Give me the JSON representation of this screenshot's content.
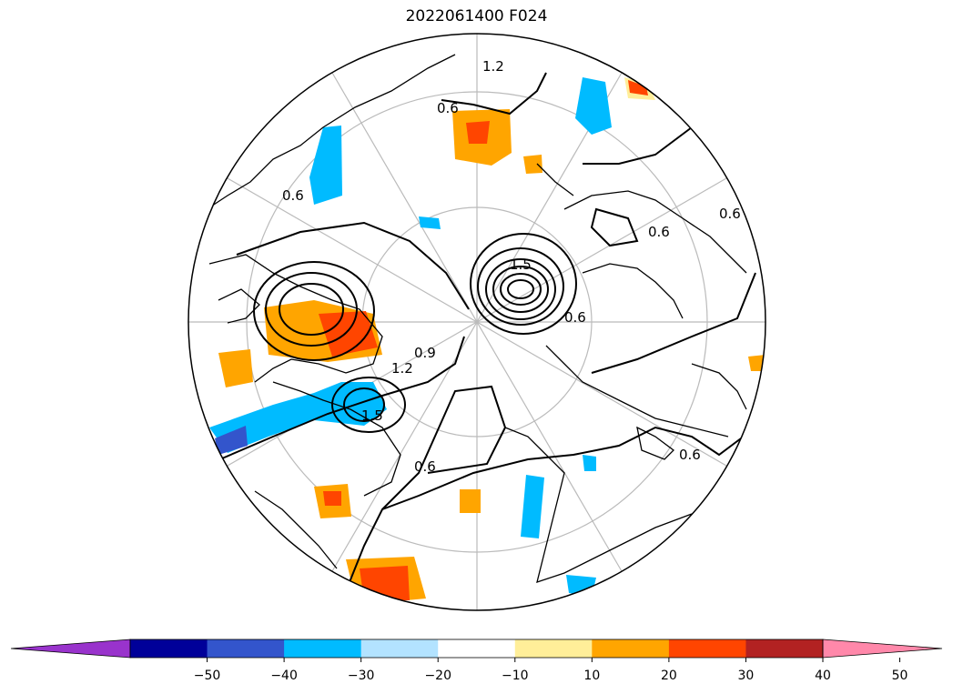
{
  "title": "2022061400 F024",
  "colorbar": {
    "ticks": [
      "−50",
      "−40",
      "−30",
      "−20",
      "−10",
      "10",
      "20",
      "30",
      "40",
      "50"
    ],
    "colors": [
      "#9933cc",
      "#000099",
      "#3355cc",
      "#00bbff",
      "#b3e3ff",
      "#ffffff",
      "#ffee99",
      "#ffa500",
      "#ff4500",
      "#b22222",
      "#ff88aa"
    ],
    "extend": "both"
  },
  "map": {
    "projection": "north-polar-stereographic",
    "contour_labels": [
      "1.2",
      "0.6",
      "0.9",
      "1.5",
      "1.5",
      "0.6",
      "0.6",
      "0.6",
      "0.6",
      "0.6",
      "1.2",
      "0.6"
    ],
    "graticule_color": "#bbbbbb"
  }
}
